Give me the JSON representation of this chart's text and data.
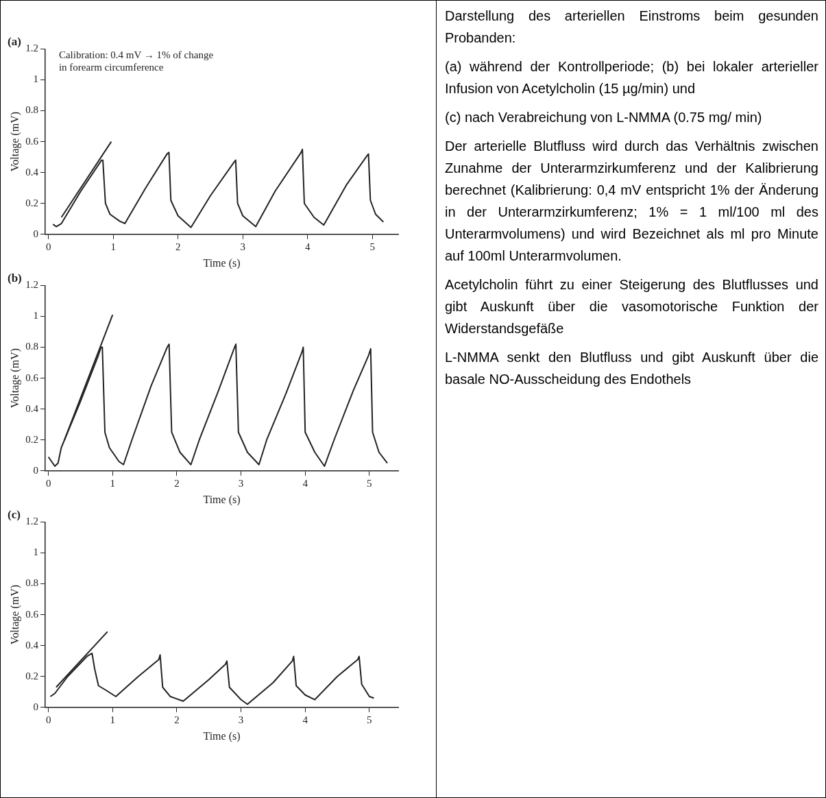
{
  "chart_data": [
    {
      "type": "line",
      "title": "(a)",
      "xlabel": "Time (s)",
      "ylabel": "Voltage (mV)",
      "annotations": [
        "Calibration: 0.4 mV → 1% of change\nin forearm circumference"
      ],
      "xlim": [
        -0.05,
        5.4
      ],
      "ylim": [
        0,
        1.2
      ],
      "xticks": [
        0,
        1,
        2,
        3,
        4,
        5
      ],
      "yticks": [
        0,
        0.2,
        0.4,
        0.6,
        0.8,
        1,
        1.2
      ],
      "series": [
        {
          "color": "#222222",
          "x": [
            0.07,
            0.12,
            0.2,
            0.5,
            0.82,
            0.84,
            0.88,
            0.95,
            1.1,
            1.18,
            1.5,
            1.83,
            1.86,
            1.89,
            2.0,
            2.2,
            2.5,
            2.87,
            2.89,
            2.92,
            3.0,
            3.2,
            3.5,
            3.9,
            3.92,
            3.95,
            4.1,
            4.25,
            4.6,
            4.92,
            4.94,
            4.97,
            5.05,
            5.17
          ],
          "values": [
            0.065,
            0.05,
            0.07,
            0.28,
            0.48,
            0.48,
            0.2,
            0.13,
            0.085,
            0.07,
            0.3,
            0.52,
            0.53,
            0.22,
            0.12,
            0.045,
            0.25,
            0.47,
            0.48,
            0.2,
            0.12,
            0.05,
            0.28,
            0.53,
            0.55,
            0.2,
            0.11,
            0.06,
            0.32,
            0.51,
            0.52,
            0.22,
            0.13,
            0.08
          ]
        },
        {
          "type": "line",
          "color": "#222222",
          "x": [
            0.2,
            0.97
          ],
          "values": [
            0.11,
            0.6
          ]
        }
      ]
    },
    {
      "type": "line",
      "title": "(b)",
      "xlabel": "Time (s)",
      "ylabel": "Voltage (mV)",
      "xlim": [
        -0.05,
        5.45
      ],
      "ylim": [
        0,
        1.2
      ],
      "xticks": [
        0,
        1,
        2,
        3,
        4,
        5
      ],
      "yticks": [
        0,
        0.2,
        0.4,
        0.6,
        0.8,
        1,
        1.2
      ],
      "series": [
        {
          "color": "#222222",
          "x": [
            0,
            0.05,
            0.1,
            0.15,
            0.2,
            0.5,
            0.78,
            0.82,
            0.84,
            0.88,
            0.95,
            1.1,
            1.17,
            1.3,
            1.6,
            1.85,
            1.88,
            1.92,
            2.05,
            2.22,
            2.35,
            2.65,
            2.9,
            2.92,
            2.96,
            3.1,
            3.28,
            3.4,
            3.7,
            3.95,
            3.97,
            4.0,
            4.15,
            4.3,
            4.45,
            4.75,
            4.99,
            5.02,
            5.05,
            5.15,
            5.28
          ],
          "values": [
            0.09,
            0.06,
            0.03,
            0.05,
            0.15,
            0.45,
            0.75,
            0.8,
            0.8,
            0.25,
            0.15,
            0.06,
            0.04,
            0.2,
            0.55,
            0.8,
            0.82,
            0.25,
            0.12,
            0.04,
            0.2,
            0.52,
            0.8,
            0.82,
            0.25,
            0.12,
            0.04,
            0.2,
            0.5,
            0.77,
            0.8,
            0.25,
            0.12,
            0.03,
            0.2,
            0.52,
            0.75,
            0.79,
            0.25,
            0.12,
            0.05
          ]
        },
        {
          "type": "line",
          "color": "#222222",
          "x": [
            0.25,
            1.0
          ],
          "values": [
            0.2,
            1.01
          ]
        }
      ]
    },
    {
      "type": "line",
      "title": "(c)",
      "xlabel": "Time (s)",
      "ylabel": "Voltage (mV)",
      "xlim": [
        -0.05,
        5.45
      ],
      "ylim": [
        0,
        1.2
      ],
      "xticks": [
        0,
        1,
        2,
        3,
        4,
        5
      ],
      "yticks": [
        0,
        0.2,
        0.4,
        0.6,
        0.8,
        1,
        1.2
      ],
      "series": [
        {
          "color": "#222222",
          "x": [
            0.03,
            0.1,
            0.3,
            0.6,
            0.68,
            0.72,
            0.78,
            0.9,
            1.05,
            1.4,
            1.72,
            1.74,
            1.78,
            1.9,
            2.1,
            2.5,
            2.76,
            2.78,
            2.82,
            3.0,
            3.1,
            3.5,
            3.8,
            3.82,
            3.86,
            4.0,
            4.15,
            4.5,
            4.82,
            4.84,
            4.88,
            5.0,
            5.07
          ],
          "values": [
            0.07,
            0.09,
            0.2,
            0.33,
            0.35,
            0.25,
            0.14,
            0.11,
            0.07,
            0.2,
            0.31,
            0.34,
            0.13,
            0.07,
            0.04,
            0.18,
            0.28,
            0.3,
            0.13,
            0.05,
            0.02,
            0.16,
            0.3,
            0.33,
            0.14,
            0.08,
            0.05,
            0.2,
            0.31,
            0.33,
            0.15,
            0.07,
            0.06
          ]
        },
        {
          "type": "line",
          "color": "#222222",
          "x": [
            0.12,
            0.92
          ],
          "values": [
            0.13,
            0.49
          ]
        }
      ]
    },
    {
      "type": "other",
      "annotations": [
        "Darstellung des arteriellen Einstroms beim gesunden Probanden:",
        "(a) während der Kontrollperiode; (b) bei lokaler arterieller Infusion von Acetylcholin (15 µg/min) und",
        "(c) nach Verabreichung von L-NMMA (0.75 mg/ min)",
        "Der arterielle Blutfluss wird durch das Verhältnis zwischen Zunahme der Unterarmzirkumferenz und der Kalibrierung berechnet (Kalibrierung: 0,4 mV entspricht 1% der Änderung in der Unterarmzirkumferenz; 1% = 1 ml/100 ml des Unterarmvolumens) und wird Bezeichnet als ml pro Minute auf 100ml Unterarmvolumen.",
        "Acetylcholin führt zu einer Steigerung des Blutflusses und gibt Auskunft über die vasomotorische Funktion der Widerstandsgefäße",
        "L-NMMA senkt den Blutfluss und gibt Auskunft über die basale NO-Ausscheidung des Endothels"
      ]
    }
  ]
}
